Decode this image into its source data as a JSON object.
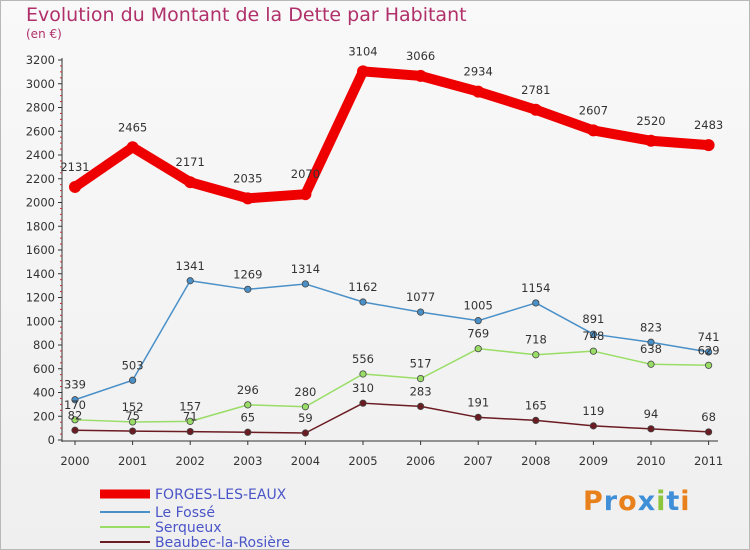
{
  "chart_data": {
    "type": "line",
    "title": "Evolution du Montant de la Dette par Habitant",
    "subtitle": "(en €)",
    "x": [
      "2000",
      "2001",
      "2002",
      "2003",
      "2004",
      "2005",
      "2006",
      "2007",
      "2008",
      "2009",
      "2010",
      "2011"
    ],
    "ylim": [
      0,
      3200
    ],
    "yticks": [
      0,
      200,
      400,
      600,
      800,
      1000,
      1200,
      1400,
      1600,
      1800,
      2000,
      2200,
      2400,
      2600,
      2800,
      3000,
      3200
    ],
    "grid": false,
    "legend": "bottom-left",
    "series": [
      {
        "name": "FORGES-LES-EAUX",
        "color": "#ee0000",
        "values": [
          2131,
          2465,
          2171,
          2035,
          2070,
          3104,
          3066,
          2934,
          2781,
          2607,
          2520,
          2483
        ]
      },
      {
        "name": "Le Fossé",
        "color": "#4a90c8",
        "values": [
          339,
          503,
          1341,
          1269,
          1314,
          1162,
          1077,
          1005,
          1154,
          891,
          823,
          741
        ]
      },
      {
        "name": "Serqueux",
        "color": "#99dd66",
        "values": [
          170,
          152,
          157,
          296,
          280,
          556,
          517,
          769,
          718,
          748,
          638,
          629
        ]
      },
      {
        "name": "Beaubec-la-Rosière",
        "color": "#6b1c22",
        "values": [
          82,
          75,
          71,
          65,
          59,
          310,
          283,
          191,
          165,
          119,
          94,
          68
        ]
      }
    ]
  },
  "logo": {
    "text": "Proxiti",
    "letters": [
      {
        "ch": "P",
        "color": "#e8801c"
      },
      {
        "ch": "r",
        "color": "#3f8fd8"
      },
      {
        "ch": "o",
        "color": "#e8801c"
      },
      {
        "ch": "x",
        "color": "#3f8fd8"
      },
      {
        "ch": "i",
        "color": "#8cc63e"
      },
      {
        "ch": "t",
        "color": "#3f8fd8"
      },
      {
        "ch": "i",
        "color": "#e8801c"
      }
    ]
  }
}
